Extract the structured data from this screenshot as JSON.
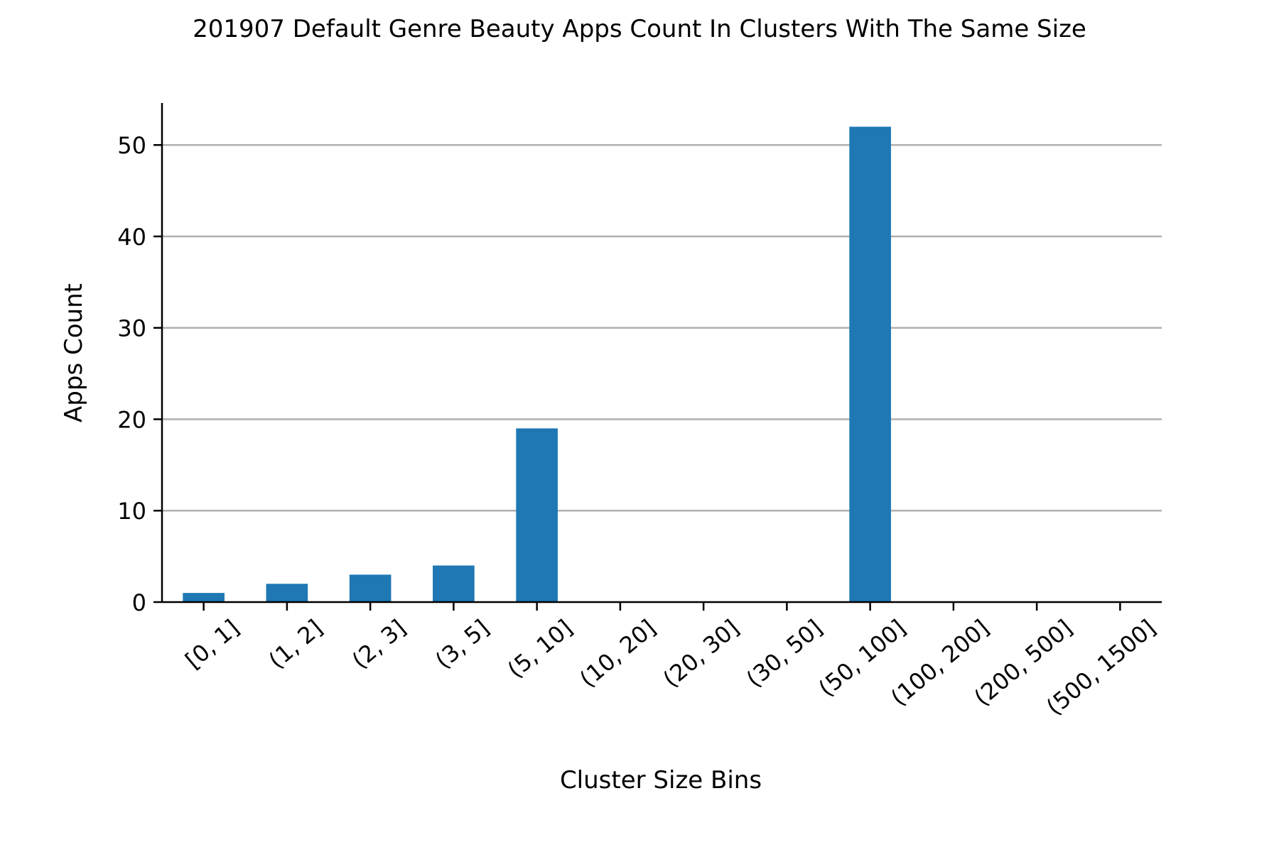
{
  "chart_data": {
    "type": "bar",
    "title": "201907 Default Genre Beauty Apps Count In Clusters With The Same Size",
    "xlabel": "Cluster Size Bins",
    "ylabel": "Apps Count",
    "categories": [
      "[0, 1]",
      "(1, 2]",
      "(2, 3]",
      "(3, 5]",
      "(5, 10]",
      "(10, 20]",
      "(20, 30]",
      "(30, 50]",
      "(50, 100]",
      "(100, 200]",
      "(200, 500]",
      "(500, 1500]"
    ],
    "values": [
      1,
      2,
      3,
      4,
      19,
      0,
      0,
      0,
      52,
      0,
      0,
      0
    ],
    "ylim": [
      0,
      54.6
    ],
    "yticks": [
      0,
      10,
      20,
      30,
      40,
      50
    ],
    "grid": "horizontal",
    "bar_color": "#1f77b4",
    "grid_color": "#b0b0b0"
  }
}
